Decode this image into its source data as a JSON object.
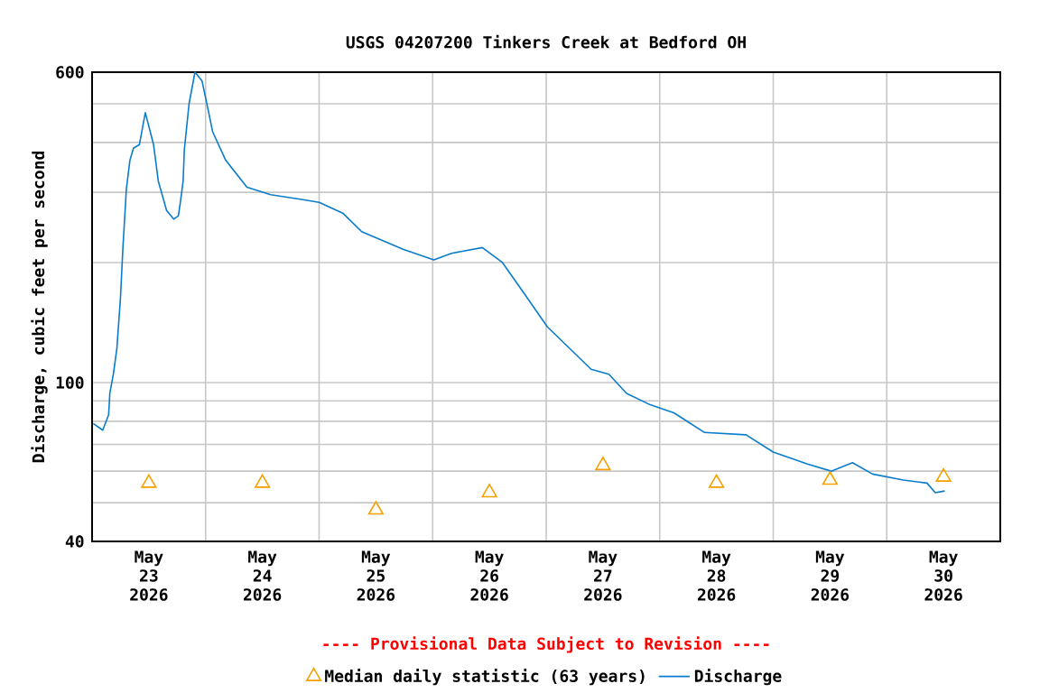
{
  "chart_data": {
    "type": "line",
    "title": "USGS 04207200 Tinkers Creek at Bedford OH",
    "ylabel": "Discharge, cubic feet per second",
    "annotations": [
      "---- Provisional Data Subject to Revision ----"
    ],
    "log": "y",
    "grid": true,
    "legend": "bottom",
    "xlim": [
      "2026-05-23T00:00",
      "2026-05-31T00:00"
    ],
    "xticks": [
      {
        "value": "2026-05-23T12:00",
        "label": "May 23 2026"
      },
      {
        "value": "2026-05-24T12:00",
        "label": "May 24 2026"
      },
      {
        "value": "2026-05-25T12:00",
        "label": "May 25 2026"
      },
      {
        "value": "2026-05-26T12:00",
        "label": "May 26 2026"
      },
      {
        "value": "2026-05-27T12:00",
        "label": "May 27 2026"
      },
      {
        "value": "2026-05-28T12:00",
        "label": "May 28 2026"
      },
      {
        "value": "2026-05-29T12:00",
        "label": "May 29 2026"
      },
      {
        "value": "2026-05-30T12:00",
        "label": "May 30 2026"
      },
      {
        "value": "2026-05-24T00:00",
        "label": null
      },
      {
        "value": "2026-05-25T00:00",
        "label": null
      },
      {
        "value": "2026-05-26T00:00",
        "label": null
      },
      {
        "value": "2026-05-27T00:00",
        "label": null
      },
      {
        "value": "2026-05-28T00:00",
        "label": null
      },
      {
        "value": "2026-05-29T00:00",
        "label": null
      },
      {
        "value": "2026-05-30T00:00",
        "label": null
      }
    ],
    "ylim": [
      40,
      600
    ],
    "yticks": [
      40,
      {
        "value": 50,
        "label": null
      },
      {
        "value": 60,
        "label": null
      },
      {
        "value": 70,
        "label": null
      },
      {
        "value": 80,
        "label": null
      },
      {
        "value": 90,
        "label": null
      },
      100,
      {
        "value": 200,
        "label": null
      },
      {
        "value": 300,
        "label": null
      },
      {
        "value": 400,
        "label": null
      },
      {
        "value": 500,
        "label": null
      },
      600
    ],
    "series": [
      {
        "name": "Median daily statistic (63 years)",
        "type": "scatter",
        "marker": "triangle",
        "color": "#f5a000",
        "x": [
          "2026-05-23T12:00",
          "2026-05-24T12:00",
          "2026-05-25T12:00",
          "2026-05-26T12:00",
          "2026-05-27T12:00",
          "2026-05-28T12:00",
          "2026-05-29T12:00",
          "2026-05-30T12:00"
        ],
        "values": [
          56,
          56,
          48,
          53,
          62,
          56,
          57,
          58
        ]
      },
      {
        "name": "Discharge",
        "color": "#0a7ccc",
        "x": [
          "2026-05-23T00:15",
          "2026-05-23T02:15",
          "2026-05-23T03:30",
          "2026-05-23T03:45",
          "2026-05-23T04:30",
          "2026-05-23T05:15",
          "2026-05-23T06:00",
          "2026-05-23T06:30",
          "2026-05-23T07:15",
          "2026-05-23T08:00",
          "2026-05-23T08:45",
          "2026-05-23T10:00",
          "2026-05-23T11:15",
          "2026-05-23T13:00",
          "2026-05-23T14:00",
          "2026-05-23T15:45",
          "2026-05-23T17:15",
          "2026-05-23T18:15",
          "2026-05-23T18:45",
          "2026-05-23T19:15",
          "2026-05-23T19:30",
          "2026-05-23T20:30",
          "2026-05-23T21:45",
          "2026-05-23T23:15",
          "2026-05-24T00:30",
          "2026-05-24T01:30",
          "2026-05-24T04:15",
          "2026-05-24T08:45",
          "2026-05-24T13:45",
          "2026-05-24T20:15",
          "2026-05-25T00:00",
          "2026-05-25T05:00",
          "2026-05-25T09:00",
          "2026-05-25T17:45",
          "2026-05-26T00:15",
          "2026-05-26T04:00",
          "2026-05-26T10:30",
          "2026-05-26T14:45",
          "2026-05-26T19:15",
          "2026-05-27T00:15",
          "2026-05-27T04:00",
          "2026-05-27T09:30",
          "2026-05-27T13:15",
          "2026-05-27T17:00",
          "2026-05-27T22:00",
          "2026-05-28T03:00",
          "2026-05-28T09:30",
          "2026-05-28T18:15",
          "2026-05-29T00:00",
          "2026-05-29T07:15",
          "2026-05-29T12:15",
          "2026-05-29T16:45",
          "2026-05-29T21:00",
          "2026-05-30T03:30",
          "2026-05-30T08:30",
          "2026-05-30T10:15",
          "2026-05-30T12:15"
        ],
        "values": [
          79,
          76,
          83,
          94,
          105,
          122,
          163,
          216,
          306,
          361,
          387,
          395,
          475,
          395,
          320,
          270,
          257,
          262,
          288,
          320,
          383,
          500,
          600,
          570,
          485,
          425,
          361,
          309,
          296,
          288,
          283,
          266,
          239,
          216,
          203,
          211,
          218,
          200,
          168,
          138,
          125,
          108,
          105,
          94,
          88,
          84,
          75,
          74,
          67,
          62.5,
          60,
          63,
          59,
          57,
          56,
          53,
          53.5
        ]
      }
    ]
  }
}
